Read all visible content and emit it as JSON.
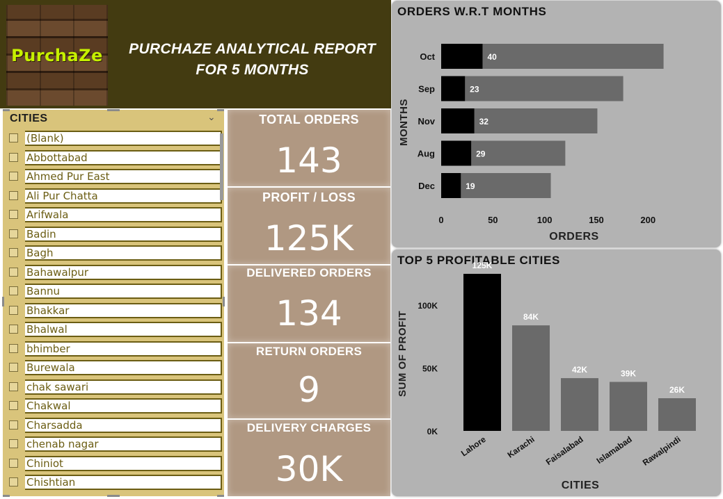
{
  "header": {
    "logo_text": "PurchaZe",
    "title_line1": "PURCHAZE ANALYTICAL REPORT",
    "title_line2": "FOR 5 MONTHS"
  },
  "slicer": {
    "title": "CITIES",
    "items": [
      "(Blank)",
      "Abbottabad",
      "Ahmed Pur East",
      "Ali Pur Chatta",
      "Arifwala",
      "Badin",
      "Bagh",
      "Bahawalpur",
      "Bannu",
      "Bhakkar",
      "Bhalwal",
      "bhimber",
      "Burewala",
      "chak sawari",
      "Chakwal",
      "Charsadda",
      "chenab nagar",
      "Chiniot",
      "Chishtian"
    ]
  },
  "kpis": [
    {
      "label": "TOTAL ORDERS",
      "value": "143"
    },
    {
      "label": "PROFIT / LOSS",
      "value": "125K"
    },
    {
      "label": "DELIVERED ORDERS",
      "value": "134"
    },
    {
      "label": "RETURN ORDERS",
      "value": "9"
    },
    {
      "label": "DELIVERY CHARGES",
      "value": "30K"
    }
  ],
  "chart_data": [
    {
      "type": "bar",
      "orientation": "horizontal",
      "title": "ORDERS W.R.T MONTHS",
      "xlabel": "ORDERS",
      "ylabel": "MONTHS",
      "categories": [
        "Oct",
        "Sep",
        "Nov",
        "Aug",
        "Dec"
      ],
      "series": [
        {
          "values": [
            40,
            23,
            32,
            29,
            19
          ],
          "color": "#000000"
        },
        {
          "values": [
            215,
            176,
            151,
            120,
            106
          ],
          "color": "#6a6a6a"
        }
      ],
      "data_labels": [
        "40",
        "23",
        "32",
        "29",
        "19"
      ],
      "xticks": [
        0,
        50,
        100,
        150,
        200
      ],
      "xtick_labels": [
        "0",
        "50",
        "100",
        "150",
        "200"
      ],
      "xlim": [
        0,
        220
      ]
    },
    {
      "type": "bar",
      "title": "TOP 5 PROFITABLE CITIES",
      "xlabel": "CITIES",
      "ylabel": "SUM OF PROFIT",
      "categories": [
        "Lahore",
        "Karachi",
        "Faisalabad",
        "Islamabad",
        "Rawalpindi"
      ],
      "values": [
        125,
        84,
        42,
        39,
        26
      ],
      "data_labels": [
        "125K",
        "84K",
        "42K",
        "39K",
        "26K"
      ],
      "colors": [
        "#000000",
        "#6a6a6a",
        "#6a6a6a",
        "#6a6a6a",
        "#6a6a6a"
      ],
      "yticks": [
        0,
        50,
        100
      ],
      "ytick_labels": [
        "0K",
        "50K",
        "100K"
      ],
      "ylim": [
        0,
        130
      ]
    }
  ]
}
